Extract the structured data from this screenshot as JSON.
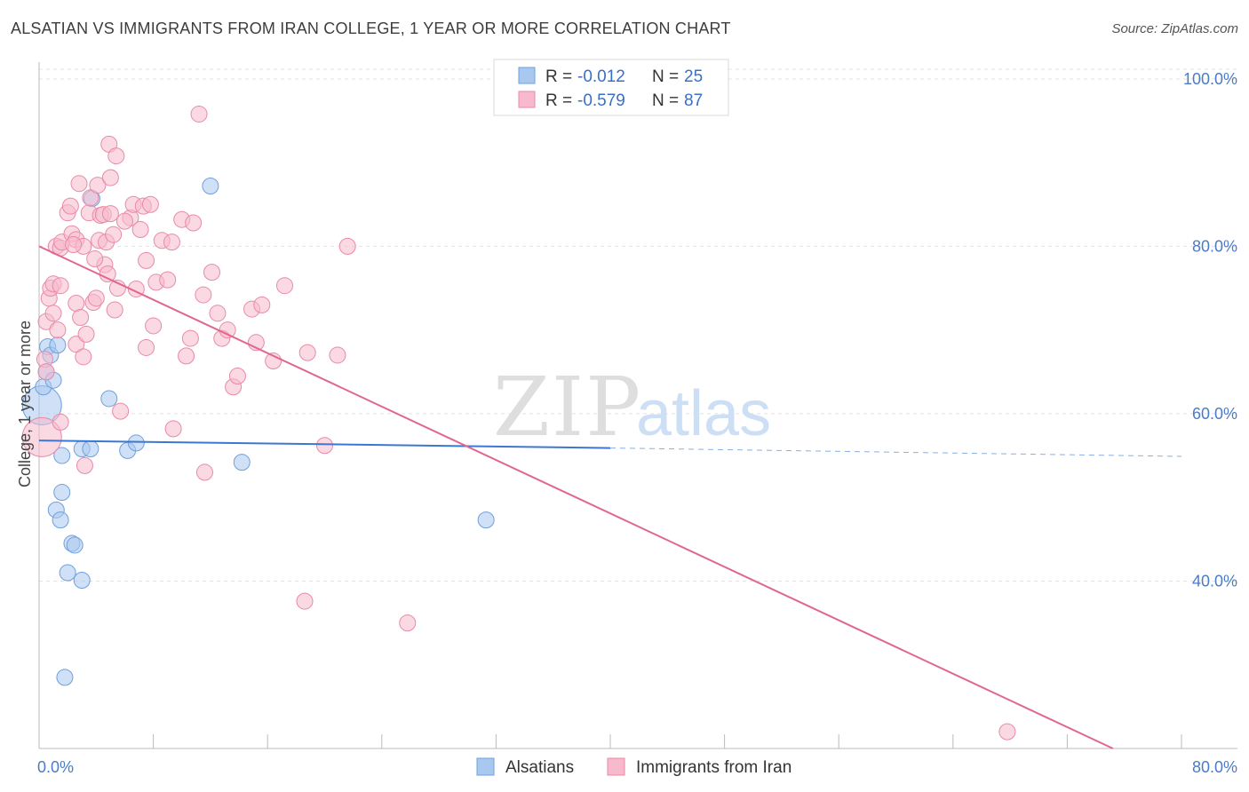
{
  "header": {
    "title": "ALSATIAN VS IMMIGRANTS FROM IRAN COLLEGE, 1 YEAR OR MORE CORRELATION CHART",
    "source": "Source: ZipAtlas.com"
  },
  "watermark": {
    "zip": "ZIP",
    "atlas": "atlas"
  },
  "legend": {
    "rows": [
      {
        "r_label": "R =",
        "r_value": "-0.012",
        "n_label": "N =",
        "n_value": "25",
        "color": "#a9c8f0",
        "stroke": "#6f9fdc"
      },
      {
        "r_label": "R =",
        "r_value": "-0.579",
        "n_label": "N =",
        "n_value": "87",
        "color": "#f7b9cc",
        "stroke": "#e88aa8"
      }
    ]
  },
  "bottom_legend": {
    "items": [
      {
        "label": "Alsatians",
        "color": "#a9c8f0",
        "stroke": "#6f9fdc"
      },
      {
        "label": "Immigrants from Iran",
        "color": "#f7b9cc",
        "stroke": "#e88aa8"
      }
    ]
  },
  "chart_data": {
    "type": "scatter",
    "title": "ALSATIAN VS IMMIGRANTS FROM IRAN COLLEGE, 1 YEAR OR MORE CORRELATION CHART",
    "xlabel": "",
    "ylabel": "College, 1 year or more",
    "xlim": [
      0,
      80
    ],
    "ylim": [
      20,
      102
    ],
    "x_ticks": [
      {
        "value": 0,
        "label": "0.0%"
      },
      {
        "value": 80,
        "label": "80.0%"
      }
    ],
    "y_ticks": [
      {
        "value": 40,
        "label": "40.0%"
      },
      {
        "value": 60,
        "label": "60.0%"
      },
      {
        "value": 80,
        "label": "80.0%"
      },
      {
        "value": 100,
        "label": "100.0%"
      }
    ],
    "grid": true,
    "series": [
      {
        "name": "Alsatians",
        "color": "#6f9fdc",
        "fill": "#a9c8f0",
        "points": [
          [
            0.2,
            61.0
          ],
          [
            0.3,
            63.2
          ],
          [
            0.5,
            65.0
          ],
          [
            0.6,
            68.0
          ],
          [
            0.8,
            67.0
          ],
          [
            1.0,
            64.0
          ],
          [
            1.3,
            68.2
          ],
          [
            1.6,
            55.0
          ],
          [
            1.6,
            50.6
          ],
          [
            1.2,
            48.5
          ],
          [
            1.5,
            47.3
          ],
          [
            2.3,
            44.5
          ],
          [
            2.5,
            44.3
          ],
          [
            2.0,
            41.0
          ],
          [
            3.0,
            40.1
          ],
          [
            1.8,
            28.5
          ],
          [
            3.0,
            55.8
          ],
          [
            3.6,
            55.8
          ],
          [
            4.9,
            61.8
          ],
          [
            6.2,
            55.6
          ],
          [
            6.8,
            56.5
          ],
          [
            12.0,
            87.2
          ],
          [
            14.2,
            54.2
          ],
          [
            3.7,
            85.7
          ],
          [
            31.3,
            47.3
          ]
        ],
        "sizes": [
          [
            0.2,
            61.0,
            22
          ]
        ],
        "trend": {
          "x0": 0,
          "y0": 56.8,
          "x1": 40,
          "y1": 55.9,
          "dashed_to": 80,
          "dashed_y": 54.9
        }
      },
      {
        "name": "Immigrants from Iran",
        "color": "#e88aa8",
        "fill": "#f7b9cc",
        "points": [
          [
            0.2,
            57.2
          ],
          [
            0.4,
            66.5
          ],
          [
            0.5,
            71.0
          ],
          [
            0.5,
            65.0
          ],
          [
            0.7,
            73.8
          ],
          [
            0.8,
            75.0
          ],
          [
            1.0,
            75.5
          ],
          [
            1.0,
            72.0
          ],
          [
            1.2,
            80.0
          ],
          [
            1.5,
            79.8
          ],
          [
            1.6,
            80.5
          ],
          [
            1.5,
            75.3
          ],
          [
            1.5,
            59.0
          ],
          [
            2.0,
            84.0
          ],
          [
            2.2,
            84.8
          ],
          [
            2.3,
            81.5
          ],
          [
            2.6,
            73.2
          ],
          [
            2.6,
            68.3
          ],
          [
            2.6,
            80.8
          ],
          [
            2.8,
            87.5
          ],
          [
            2.9,
            71.5
          ],
          [
            3.1,
            80.0
          ],
          [
            3.1,
            66.8
          ],
          [
            3.2,
            53.8
          ],
          [
            3.3,
            69.5
          ],
          [
            3.5,
            84.0
          ],
          [
            3.6,
            85.8
          ],
          [
            3.8,
            73.3
          ],
          [
            4.0,
            73.8
          ],
          [
            4.1,
            87.3
          ],
          [
            4.2,
            80.7
          ],
          [
            4.3,
            83.7
          ],
          [
            4.5,
            83.8
          ],
          [
            4.6,
            77.8
          ],
          [
            4.7,
            80.5
          ],
          [
            4.8,
            76.7
          ],
          [
            4.9,
            92.2
          ],
          [
            5.0,
            88.2
          ],
          [
            5.0,
            83.9
          ],
          [
            5.2,
            81.4
          ],
          [
            5.3,
            72.4
          ],
          [
            5.4,
            90.8
          ],
          [
            5.5,
            75.0
          ],
          [
            5.7,
            60.3
          ],
          [
            6.4,
            83.4
          ],
          [
            6.6,
            85.0
          ],
          [
            6.8,
            74.9
          ],
          [
            7.1,
            82.0
          ],
          [
            7.3,
            84.8
          ],
          [
            7.5,
            67.9
          ],
          [
            7.5,
            78.3
          ],
          [
            7.8,
            85.0
          ],
          [
            8.2,
            75.7
          ],
          [
            8.6,
            80.7
          ],
          [
            9.3,
            80.5
          ],
          [
            9.4,
            58.2
          ],
          [
            10.0,
            83.2
          ],
          [
            10.3,
            66.9
          ],
          [
            10.6,
            69.0
          ],
          [
            10.8,
            82.8
          ],
          [
            11.2,
            95.8
          ],
          [
            11.5,
            74.2
          ],
          [
            11.6,
            53.0
          ],
          [
            12.1,
            76.9
          ],
          [
            12.8,
            69.0
          ],
          [
            13.2,
            70.0
          ],
          [
            13.6,
            63.2
          ],
          [
            13.9,
            64.5
          ],
          [
            14.9,
            72.5
          ],
          [
            15.2,
            68.5
          ],
          [
            15.6,
            73.0
          ],
          [
            16.4,
            66.3
          ],
          [
            17.2,
            75.3
          ],
          [
            18.6,
            37.6
          ],
          [
            18.8,
            67.3
          ],
          [
            20.0,
            56.2
          ],
          [
            20.9,
            67.0
          ],
          [
            21.6,
            80.0
          ],
          [
            25.8,
            35.0
          ],
          [
            67.8,
            22.0
          ],
          [
            2.4,
            80.2
          ],
          [
            1.3,
            70.0
          ],
          [
            3.9,
            78.5
          ],
          [
            6.0,
            83.0
          ],
          [
            8.0,
            70.5
          ],
          [
            9.0,
            76.0
          ],
          [
            12.5,
            72.0
          ]
        ],
        "sizes": [
          [
            0.2,
            57.2,
            22
          ]
        ],
        "trend": {
          "x0": 0,
          "y0": 80.0,
          "x1": 75.2,
          "y1": 20.0
        }
      }
    ]
  }
}
